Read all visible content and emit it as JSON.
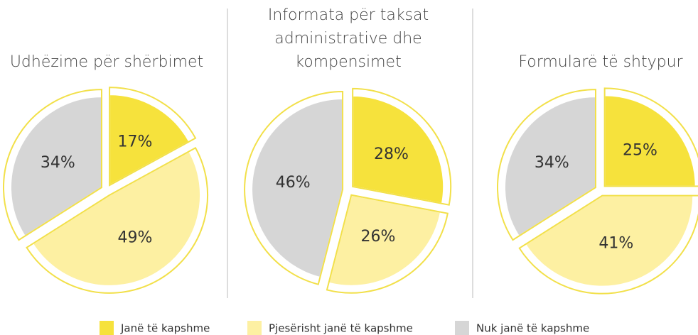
{
  "chart_data": [
    {
      "type": "pie",
      "title": [
        "Udhëzime për shërbimet"
      ],
      "values": [
        17,
        49,
        34
      ],
      "value_labels": [
        "17%",
        "49%",
        "34%"
      ]
    },
    {
      "type": "pie",
      "title": [
        "Informata për taksat",
        "administrative dhe",
        "kompensimet"
      ],
      "values": [
        28,
        26,
        46
      ],
      "value_labels": [
        "28%",
        "26%",
        "46%"
      ]
    },
    {
      "type": "pie",
      "title": [
        "Formularë të shtypur"
      ],
      "values": [
        25,
        41,
        34
      ],
      "value_labels": [
        "25%",
        "41%",
        "34%"
      ]
    }
  ],
  "legend": {
    "labels": [
      "Janë të kapshme",
      "Pjesërisht janë të kapshme",
      "Nuk janë të kapshme"
    ],
    "colors": [
      "#f6e23c",
      "#fdf0a2",
      "#d6d6d6"
    ]
  }
}
